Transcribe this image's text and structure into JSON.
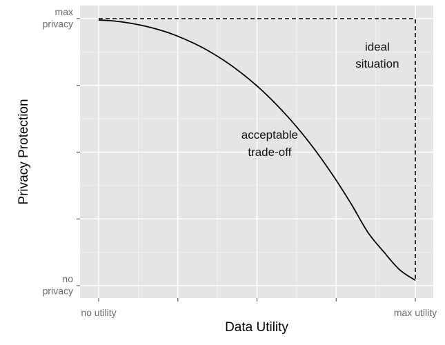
{
  "chart_data": {
    "type": "line",
    "xlabel": "Data Utility",
    "ylabel": "Privacy Protection",
    "xlim": [
      0,
      1
    ],
    "ylim": [
      0,
      1
    ],
    "x_ticks": [
      0,
      0.25,
      0.5,
      0.75,
      1
    ],
    "y_ticks": [
      0,
      0.25,
      0.5,
      0.75,
      1
    ],
    "x_tick_labels": [
      {
        "value": 0,
        "label": "no utility"
      },
      {
        "value": 1,
        "label": "max utility"
      }
    ],
    "y_tick_labels": [
      {
        "value": 1,
        "lines": [
          "max",
          "privacy"
        ]
      },
      {
        "value": 0,
        "lines": [
          "no",
          "privacy"
        ]
      }
    ],
    "grid": true,
    "background_color": "#e5e5e5",
    "gridline_color": "#ffffff",
    "series": [
      {
        "style": "solid",
        "color": "#000000",
        "x": [
          0,
          0.05,
          0.1,
          0.15,
          0.2,
          0.25,
          0.3,
          0.35,
          0.4,
          0.45,
          0.5,
          0.55,
          0.6,
          0.65,
          0.7,
          0.75,
          0.8,
          0.85,
          0.9,
          0.95,
          1
        ],
        "y": [
          0.995,
          0.991,
          0.983,
          0.971,
          0.955,
          0.934,
          0.908,
          0.877,
          0.84,
          0.797,
          0.748,
          0.692,
          0.629,
          0.559,
          0.481,
          0.395,
          0.301,
          0.2,
          0.127,
          0.06,
          0.02
        ]
      },
      {
        "style": "dashed",
        "color": "#000000",
        "x": [
          0,
          1,
          1
        ],
        "y": [
          1,
          1,
          0.02
        ]
      }
    ],
    "annotations": [
      {
        "lines": [
          "ideal",
          "situation"
        ],
        "x": 0.88,
        "y": 0.88
      },
      {
        "lines": [
          "acceptable",
          "trade-off"
        ],
        "x": 0.54,
        "y": 0.55
      }
    ]
  }
}
